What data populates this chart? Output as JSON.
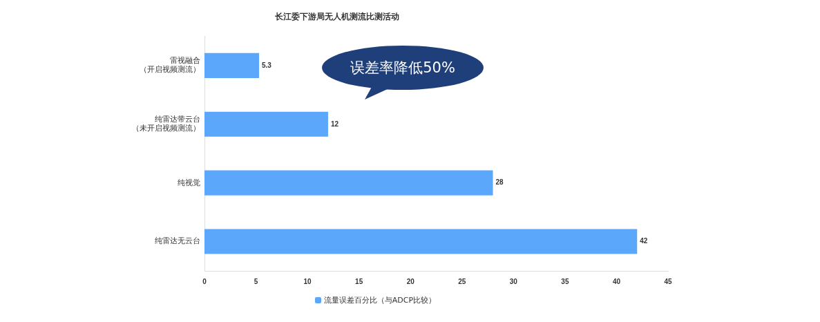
{
  "chart_data": {
    "type": "bar",
    "orientation": "horizontal",
    "title": "长江委下游局无人机测流比测活动",
    "categories": [
      "雷视融合（开启视频测流）",
      "纯雷达带云台（未开启视频测流）",
      "纯视觉",
      "纯雷达无云台"
    ],
    "series": [
      {
        "name": "流量误差百分比（与ADCP比较）",
        "color": "#5aa7fb",
        "values": [
          5.3,
          12,
          28,
          42
        ]
      }
    ],
    "xlim": [
      0,
      45
    ],
    "xticks": [
      0,
      5,
      10,
      15,
      20,
      25,
      30,
      35,
      40,
      45
    ],
    "data_labels": true,
    "grid": false,
    "legend": "bottom",
    "annotations": [
      "误差率降低50%"
    ]
  }
}
